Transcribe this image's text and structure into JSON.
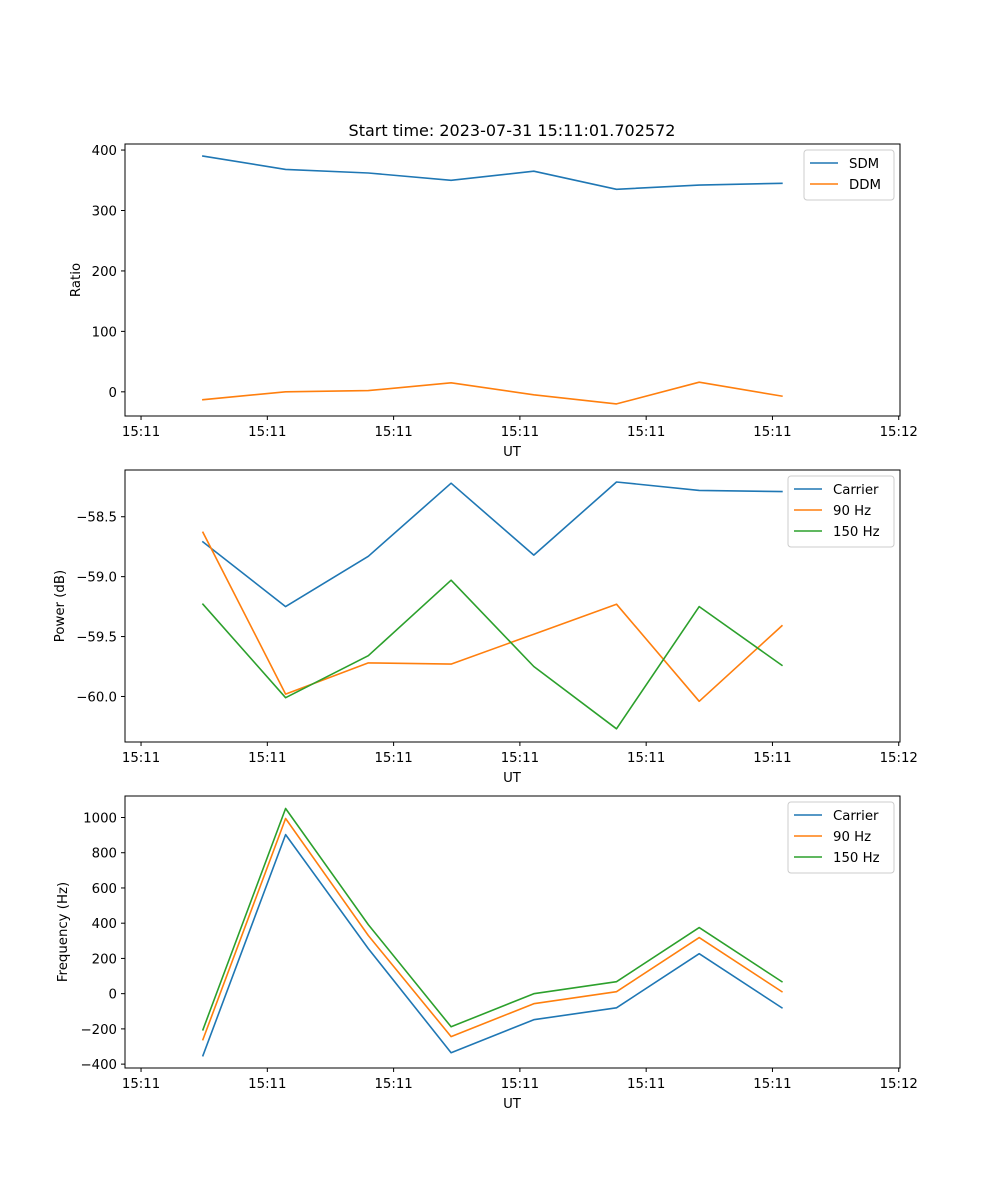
{
  "chart_data": [
    {
      "type": "line",
      "title": "Start time: 2023-07-31 15:11:01.702572",
      "xlabel": "UT",
      "ylabel": "Ratio",
      "x_ticks": [
        0,
        1,
        2,
        3,
        4,
        5,
        6
      ],
      "x_tick_labels": [
        "15:11",
        "15:11",
        "15:11",
        "15:11",
        "15:11",
        "15:11",
        "15:12"
      ],
      "xlim": [
        -0.127,
        6.01
      ],
      "ylim": [
        -40,
        410
      ],
      "y_ticks": [
        0,
        100,
        200,
        300,
        400
      ],
      "y_tick_labels": [
        "0",
        "100",
        "200",
        "300",
        "400"
      ],
      "legend": "top-right",
      "grid": false,
      "x": [
        0.49,
        1.145,
        1.8,
        2.455,
        3.11,
        3.765,
        4.42,
        5.075
      ],
      "series": [
        {
          "name": "SDM",
          "color": "#1f77b4",
          "values": [
            390,
            368,
            362,
            350,
            365,
            335,
            342,
            345
          ]
        },
        {
          "name": "DDM",
          "color": "#ff7f0e",
          "values": [
            -13,
            0,
            2,
            15,
            -5,
            -20,
            16,
            -7
          ]
        }
      ]
    },
    {
      "type": "line",
      "title": "",
      "xlabel": "UT",
      "ylabel": "Power (dB)",
      "x_ticks": [
        0,
        1,
        2,
        3,
        4,
        5,
        6
      ],
      "x_tick_labels": [
        "15:11",
        "15:11",
        "15:11",
        "15:11",
        "15:11",
        "15:11",
        "15:12"
      ],
      "xlim": [
        -0.127,
        6.01
      ],
      "ylim": [
        -60.38,
        -58.11
      ],
      "y_ticks": [
        -58.5,
        -59.0,
        -59.5,
        -60.0
      ],
      "y_tick_labels": [
        "−58.5",
        "−59.0",
        "−59.5",
        "−60.0"
      ],
      "legend": "top-right",
      "grid": false,
      "x": [
        0.49,
        1.145,
        1.8,
        2.455,
        3.11,
        3.765,
        4.42,
        5.075
      ],
      "series": [
        {
          "name": "Carrier",
          "color": "#1f77b4",
          "values": [
            -58.71,
            -59.25,
            -58.83,
            -58.22,
            -58.82,
            -58.21,
            -58.28,
            -58.29
          ]
        },
        {
          "name": "90 Hz",
          "color": "#ff7f0e",
          "values": [
            -58.63,
            -59.98,
            -59.72,
            -59.73,
            -59.48,
            -59.23,
            -60.04,
            -59.41
          ]
        },
        {
          "name": "150 Hz",
          "color": "#2ca02c",
          "values": [
            -59.23,
            -60.01,
            -59.66,
            -59.03,
            -59.75,
            -60.27,
            -59.25,
            -59.74
          ]
        }
      ]
    },
    {
      "type": "line",
      "title": "",
      "xlabel": "UT",
      "ylabel": "Frequency (Hz)",
      "x_ticks": [
        0,
        1,
        2,
        3,
        4,
        5,
        6
      ],
      "x_tick_labels": [
        "15:11",
        "15:11",
        "15:11",
        "15:11",
        "15:11",
        "15:11",
        "15:12"
      ],
      "xlim": [
        -0.127,
        6.01
      ],
      "ylim": [
        -422,
        1122
      ],
      "y_ticks": [
        -400,
        -200,
        0,
        200,
        400,
        600,
        800,
        1000
      ],
      "y_tick_labels": [
        "−400",
        "−200",
        "0",
        "200",
        "400",
        "600",
        "800",
        "1000"
      ],
      "legend": "top-right",
      "grid": false,
      "x": [
        0.49,
        1.145,
        1.8,
        2.455,
        3.11,
        3.765,
        4.42,
        5.075
      ],
      "series": [
        {
          "name": "Carrier",
          "color": "#1f77b4",
          "values": [
            -352,
            903,
            256,
            -335,
            -148,
            -80,
            227,
            -80
          ]
        },
        {
          "name": "90 Hz",
          "color": "#ff7f0e",
          "values": [
            -261,
            994,
            330,
            -244,
            -57,
            11,
            318,
            11
          ]
        },
        {
          "name": "150 Hz",
          "color": "#2ca02c",
          "values": [
            -205,
            1051,
            392,
            -188,
            0,
            68,
            375,
            68
          ]
        }
      ]
    }
  ]
}
